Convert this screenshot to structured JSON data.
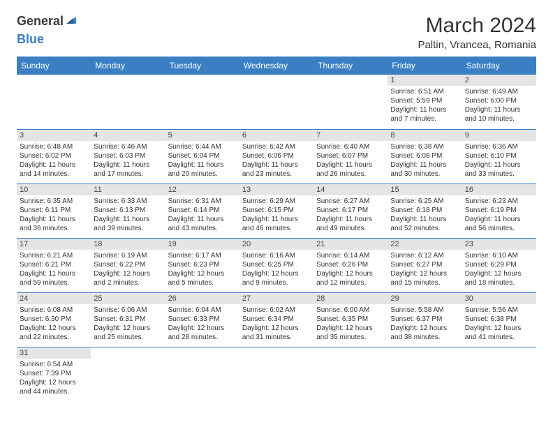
{
  "logo": {
    "text1": "General",
    "text2": "Blue"
  },
  "title": "March 2024",
  "location": "Paltin, Vrancea, Romania",
  "header_bg": "#3a7fc4",
  "header_fg": "#ffffff",
  "daynum_bg": "#e5e5e5",
  "border_color": "#3a7fc4",
  "days": [
    "Sunday",
    "Monday",
    "Tuesday",
    "Wednesday",
    "Thursday",
    "Friday",
    "Saturday"
  ],
  "weeks": [
    [
      null,
      null,
      null,
      null,
      null,
      {
        "n": "1",
        "sr": "6:51 AM",
        "ss": "5:59 PM",
        "dl": "11 hours and 7 minutes."
      },
      {
        "n": "2",
        "sr": "6:49 AM",
        "ss": "6:00 PM",
        "dl": "11 hours and 10 minutes."
      }
    ],
    [
      {
        "n": "3",
        "sr": "6:48 AM",
        "ss": "6:02 PM",
        "dl": "11 hours and 14 minutes."
      },
      {
        "n": "4",
        "sr": "6:46 AM",
        "ss": "6:03 PM",
        "dl": "11 hours and 17 minutes."
      },
      {
        "n": "5",
        "sr": "6:44 AM",
        "ss": "6:04 PM",
        "dl": "11 hours and 20 minutes."
      },
      {
        "n": "6",
        "sr": "6:42 AM",
        "ss": "6:06 PM",
        "dl": "11 hours and 23 minutes."
      },
      {
        "n": "7",
        "sr": "6:40 AM",
        "ss": "6:07 PM",
        "dl": "11 hours and 26 minutes."
      },
      {
        "n": "8",
        "sr": "6:38 AM",
        "ss": "6:08 PM",
        "dl": "11 hours and 30 minutes."
      },
      {
        "n": "9",
        "sr": "6:36 AM",
        "ss": "6:10 PM",
        "dl": "11 hours and 33 minutes."
      }
    ],
    [
      {
        "n": "10",
        "sr": "6:35 AM",
        "ss": "6:11 PM",
        "dl": "11 hours and 36 minutes."
      },
      {
        "n": "11",
        "sr": "6:33 AM",
        "ss": "6:13 PM",
        "dl": "11 hours and 39 minutes."
      },
      {
        "n": "12",
        "sr": "6:31 AM",
        "ss": "6:14 PM",
        "dl": "11 hours and 43 minutes."
      },
      {
        "n": "13",
        "sr": "6:29 AM",
        "ss": "6:15 PM",
        "dl": "11 hours and 46 minutes."
      },
      {
        "n": "14",
        "sr": "6:27 AM",
        "ss": "6:17 PM",
        "dl": "11 hours and 49 minutes."
      },
      {
        "n": "15",
        "sr": "6:25 AM",
        "ss": "6:18 PM",
        "dl": "11 hours and 52 minutes."
      },
      {
        "n": "16",
        "sr": "6:23 AM",
        "ss": "6:19 PM",
        "dl": "11 hours and 56 minutes."
      }
    ],
    [
      {
        "n": "17",
        "sr": "6:21 AM",
        "ss": "6:21 PM",
        "dl": "11 hours and 59 minutes."
      },
      {
        "n": "18",
        "sr": "6:19 AM",
        "ss": "6:22 PM",
        "dl": "12 hours and 2 minutes."
      },
      {
        "n": "19",
        "sr": "6:17 AM",
        "ss": "6:23 PM",
        "dl": "12 hours and 5 minutes."
      },
      {
        "n": "20",
        "sr": "6:16 AM",
        "ss": "6:25 PM",
        "dl": "12 hours and 9 minutes."
      },
      {
        "n": "21",
        "sr": "6:14 AM",
        "ss": "6:26 PM",
        "dl": "12 hours and 12 minutes."
      },
      {
        "n": "22",
        "sr": "6:12 AM",
        "ss": "6:27 PM",
        "dl": "12 hours and 15 minutes."
      },
      {
        "n": "23",
        "sr": "6:10 AM",
        "ss": "6:29 PM",
        "dl": "12 hours and 18 minutes."
      }
    ],
    [
      {
        "n": "24",
        "sr": "6:08 AM",
        "ss": "6:30 PM",
        "dl": "12 hours and 22 minutes."
      },
      {
        "n": "25",
        "sr": "6:06 AM",
        "ss": "6:31 PM",
        "dl": "12 hours and 25 minutes."
      },
      {
        "n": "26",
        "sr": "6:04 AM",
        "ss": "6:33 PM",
        "dl": "12 hours and 28 minutes."
      },
      {
        "n": "27",
        "sr": "6:02 AM",
        "ss": "6:34 PM",
        "dl": "12 hours and 31 minutes."
      },
      {
        "n": "28",
        "sr": "6:00 AM",
        "ss": "6:35 PM",
        "dl": "12 hours and 35 minutes."
      },
      {
        "n": "29",
        "sr": "5:58 AM",
        "ss": "6:37 PM",
        "dl": "12 hours and 38 minutes."
      },
      {
        "n": "30",
        "sr": "5:56 AM",
        "ss": "6:38 PM",
        "dl": "12 hours and 41 minutes."
      }
    ],
    [
      {
        "n": "31",
        "sr": "6:54 AM",
        "ss": "7:39 PM",
        "dl": "12 hours and 44 minutes."
      },
      null,
      null,
      null,
      null,
      null,
      null
    ]
  ],
  "labels": {
    "sunrise": "Sunrise:",
    "sunset": "Sunset:",
    "daylight": "Daylight:"
  }
}
